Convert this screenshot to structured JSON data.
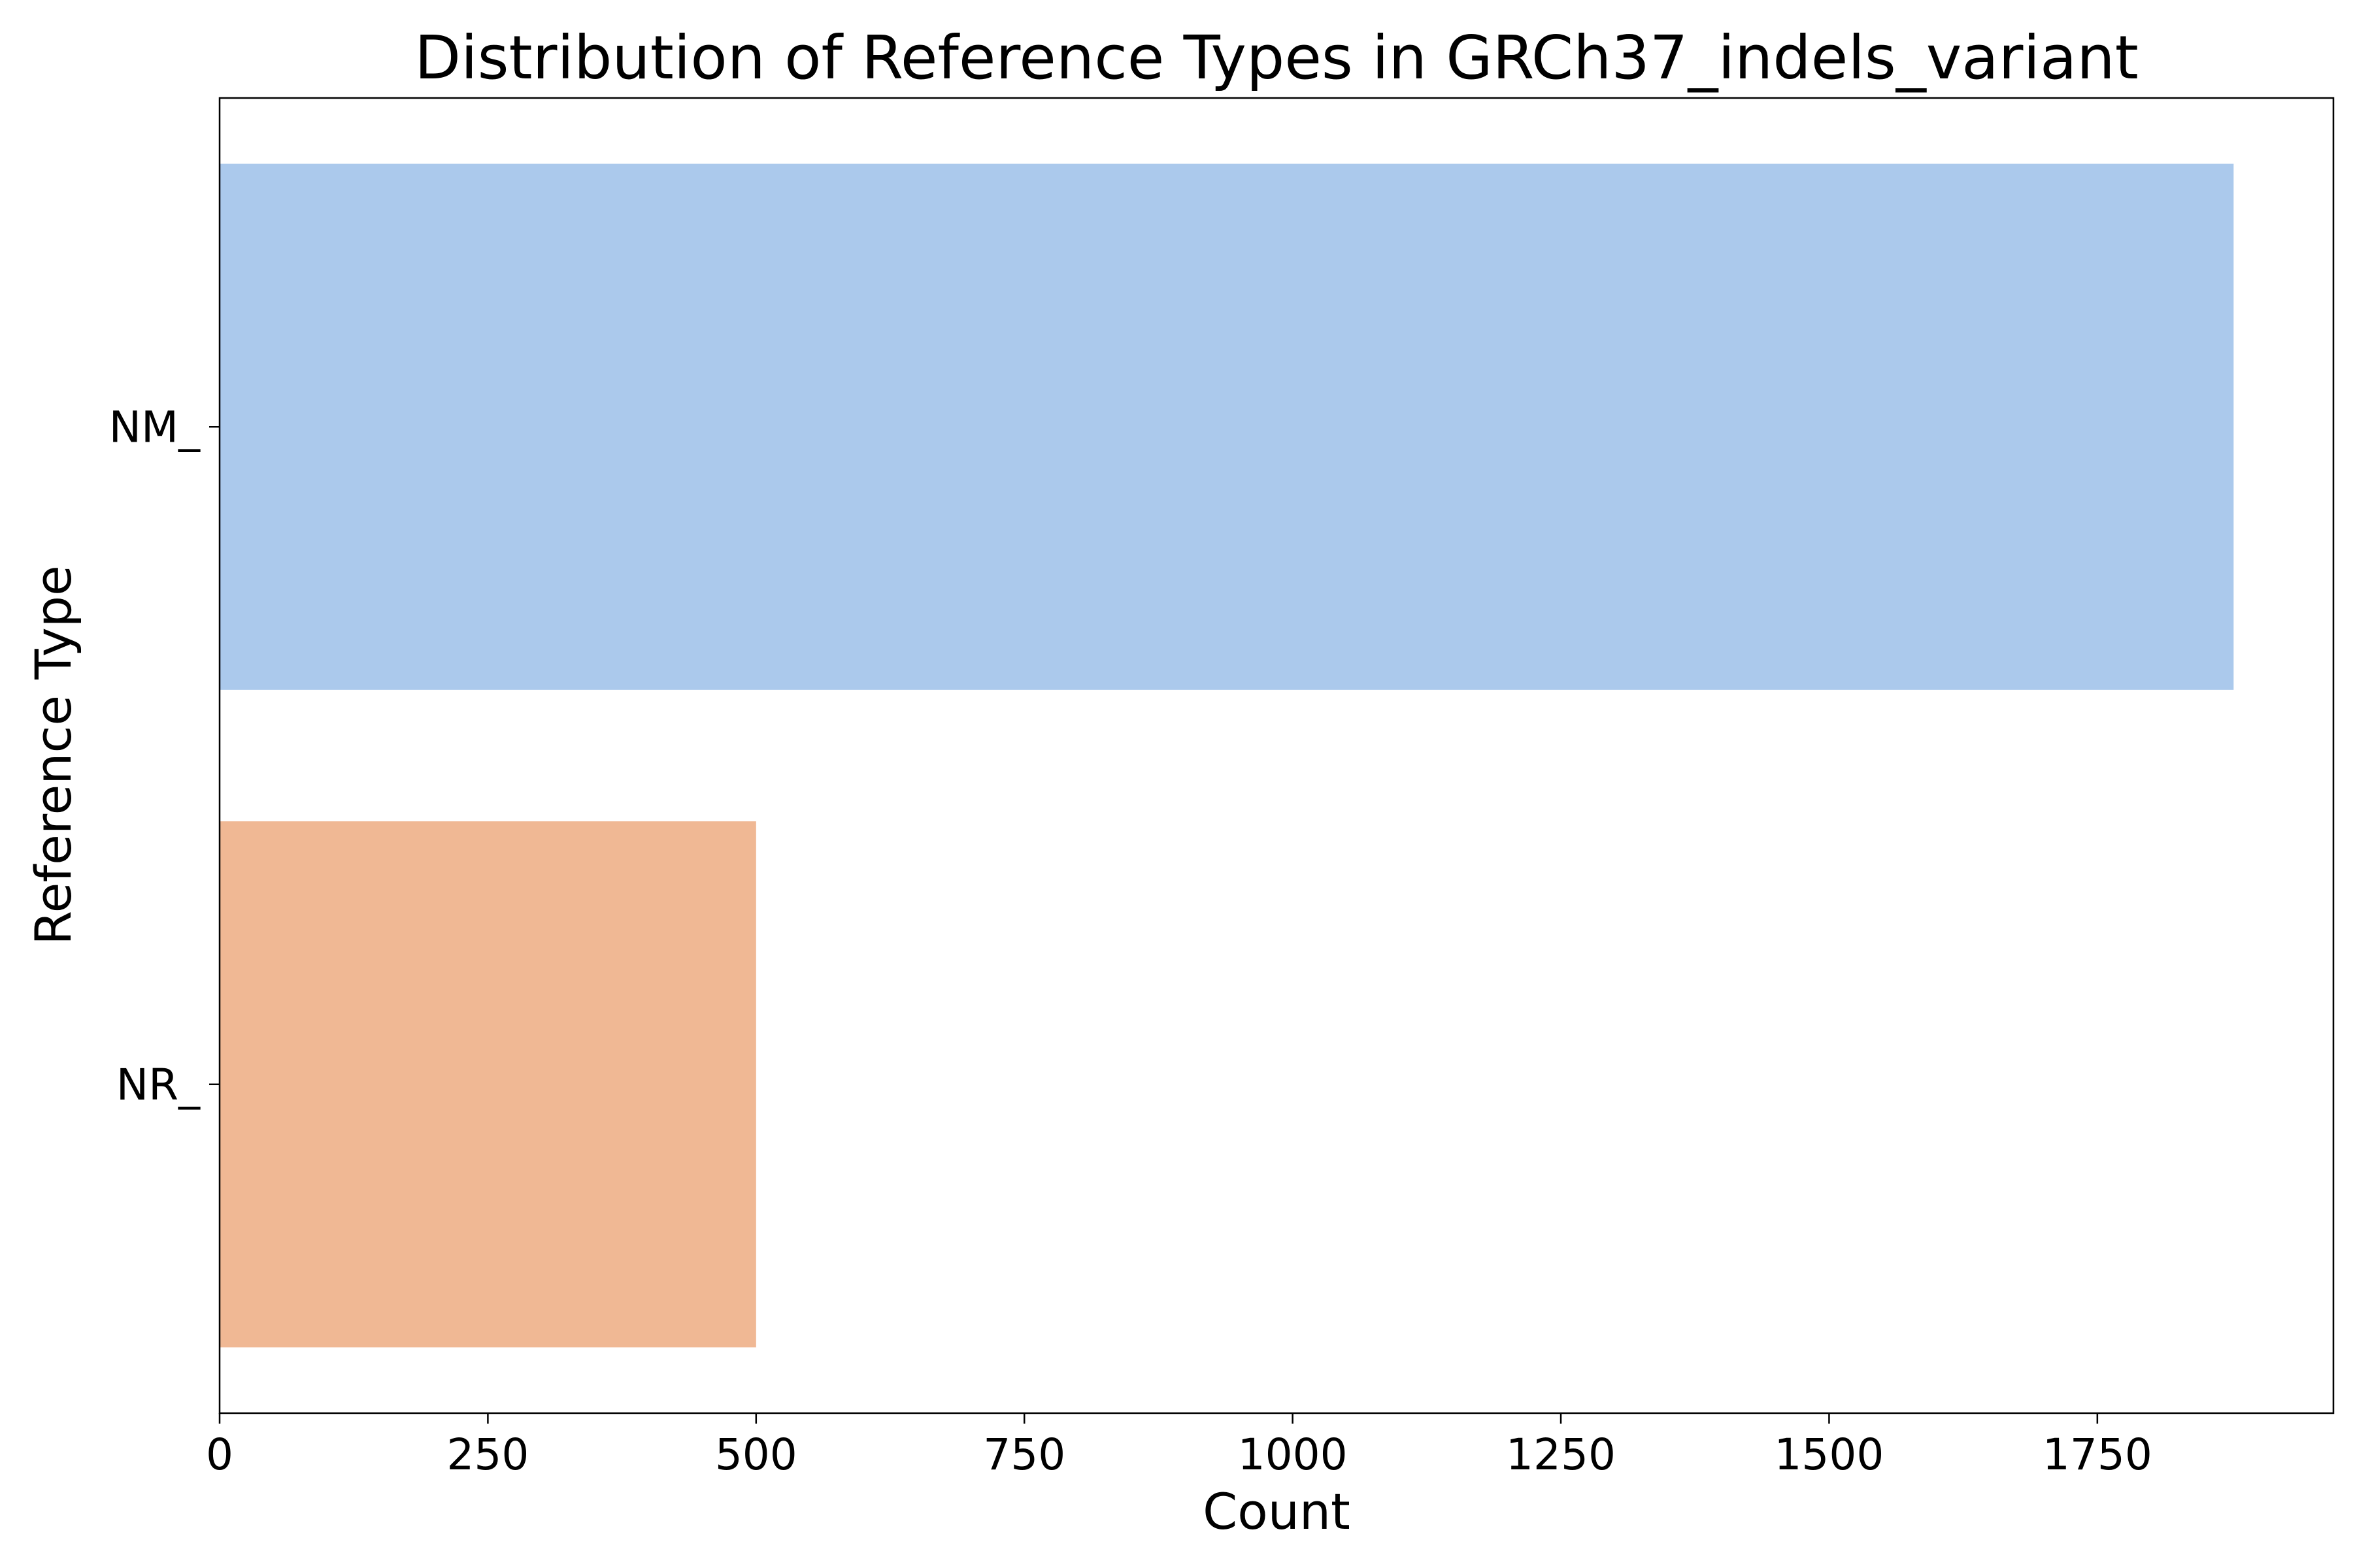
{
  "chart_data": {
    "type": "bar",
    "orientation": "horizontal",
    "title": "Distribution of Reference Types in GRCh37_indels_variant",
    "xlabel": "Count",
    "ylabel": "Reference Type",
    "categories": [
      "NM_",
      "NR_"
    ],
    "values": [
      1877,
      500
    ],
    "colors": [
      "#abc9ec",
      "#f0b894"
    ],
    "xlim": [
      0,
      1970
    ],
    "xticks": [
      0,
      250,
      500,
      750,
      1000,
      1250,
      1500,
      1750
    ],
    "grid": false,
    "legend": "none"
  }
}
